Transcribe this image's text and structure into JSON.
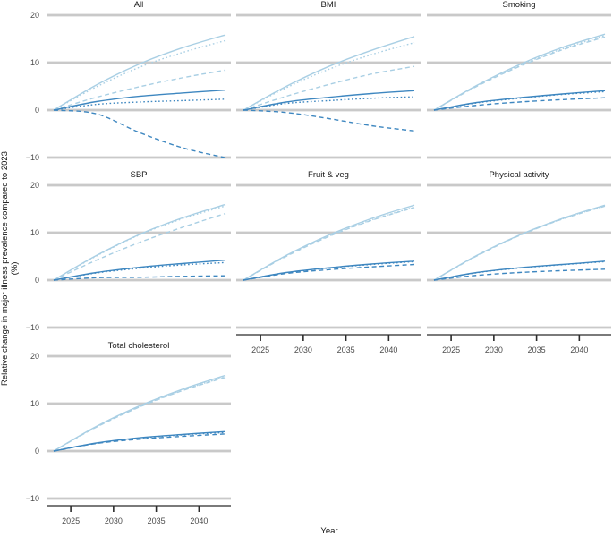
{
  "chart_data": {
    "type": "line",
    "title": "",
    "xlabel": "Year",
    "ylabel": "Relative change in major illness prevalence compared to 2023\n(%)",
    "x": [
      2023,
      2028,
      2033,
      2038,
      2043
    ],
    "x_range": [
      2023,
      2043
    ],
    "x_tick_values": [
      2025,
      2030,
      2035,
      2040
    ],
    "x_tick_labels": [
      "2025",
      "2030",
      "2035",
      "2040"
    ],
    "y_tick_values": [
      20,
      10,
      0,
      -10
    ],
    "y_tick_labels": [
      "20",
      "10",
      "0",
      "−10"
    ],
    "ylim": [
      -11,
      21
    ],
    "grid": "major-horizontal-only",
    "legend_position": "none",
    "colors": {
      "light_blue": "#a9cfe4",
      "dark_blue": "#3e87c0",
      "gridline": "#c9c9c9",
      "axis_line": "#2b2b2b",
      "tick_text": "#4d4d4d",
      "title_text": "#1a1a1a"
    },
    "panels": [
      {
        "title": "All",
        "series": [
          {
            "name": "light-solid",
            "tone": "light_blue",
            "dash": "solid",
            "values": [
              0,
              5.3,
              9.7,
              13.1,
              15.8
            ]
          },
          {
            "name": "light-dotted",
            "tone": "light_blue",
            "dash": "dotted",
            "values": [
              0,
              4.9,
              9.0,
              12.1,
              14.6
            ]
          },
          {
            "name": "light-dashed",
            "tone": "light_blue",
            "dash": "dashed",
            "values": [
              0,
              2.7,
              4.9,
              6.8,
              8.4
            ]
          },
          {
            "name": "dark-solid",
            "tone": "dark_blue",
            "dash": "solid",
            "values": [
              0,
              1.8,
              2.9,
              3.6,
              4.2
            ]
          },
          {
            "name": "dark-dotted",
            "tone": "dark_blue",
            "dash": "dotted",
            "values": [
              0,
              1.2,
              1.7,
              2.0,
              2.3
            ]
          },
          {
            "name": "dark-dashed",
            "tone": "dark_blue",
            "dash": "dashed",
            "values": [
              0,
              -0.8,
              -4.7,
              -7.9,
              -10.0
            ]
          }
        ]
      },
      {
        "title": "BMI",
        "series": [
          {
            "name": "light-solid",
            "tone": "light_blue",
            "dash": "solid",
            "values": [
              0,
              5.0,
              9.2,
              12.6,
              15.5
            ]
          },
          {
            "name": "light-dotted",
            "tone": "light_blue",
            "dash": "dotted",
            "values": [
              0,
              4.7,
              8.6,
              11.7,
              14.2
            ]
          },
          {
            "name": "light-dashed",
            "tone": "light_blue",
            "dash": "dashed",
            "values": [
              0,
              2.9,
              5.4,
              7.6,
              9.2
            ]
          },
          {
            "name": "dark-solid",
            "tone": "dark_blue",
            "dash": "solid",
            "values": [
              0,
              1.7,
              2.7,
              3.5,
              4.1
            ]
          },
          {
            "name": "dark-dotted",
            "tone": "dark_blue",
            "dash": "dotted",
            "values": [
              0,
              1.4,
              2.0,
              2.5,
              2.8
            ]
          },
          {
            "name": "dark-dashed",
            "tone": "dark_blue",
            "dash": "dashed",
            "values": [
              0,
              -0.5,
              -1.8,
              -3.3,
              -4.4
            ]
          }
        ]
      },
      {
        "title": "Smoking",
        "series": [
          {
            "name": "light-solid",
            "tone": "light_blue",
            "dash": "solid",
            "values": [
              0,
              5.2,
              9.6,
              13.2,
              16.0
            ]
          },
          {
            "name": "light-dotted",
            "tone": "light_blue",
            "dash": "dotted",
            "values": [
              0,
              5.1,
              9.4,
              12.9,
              15.7
            ]
          },
          {
            "name": "light-dashed",
            "tone": "light_blue",
            "dash": "dashed",
            "values": [
              0,
              5.0,
              9.2,
              12.7,
              15.4
            ]
          },
          {
            "name": "dark-solid",
            "tone": "dark_blue",
            "dash": "solid",
            "values": [
              0,
              1.6,
              2.6,
              3.4,
              4.1
            ]
          },
          {
            "name": "dark-dotted",
            "tone": "dark_blue",
            "dash": "dotted",
            "values": [
              0,
              1.5,
              2.5,
              3.3,
              3.9
            ]
          },
          {
            "name": "dark-dashed",
            "tone": "dark_blue",
            "dash": "dashed",
            "values": [
              0,
              1.0,
              1.7,
              2.2,
              2.6
            ]
          }
        ]
      },
      {
        "title": "SBP",
        "series": [
          {
            "name": "light-solid",
            "tone": "light_blue",
            "dash": "solid",
            "values": [
              0,
              5.2,
              9.6,
              13.1,
              15.9
            ]
          },
          {
            "name": "light-dotted",
            "tone": "light_blue",
            "dash": "dotted",
            "values": [
              0,
              5.1,
              9.5,
              12.9,
              15.6
            ]
          },
          {
            "name": "light-dashed",
            "tone": "light_blue",
            "dash": "dashed",
            "values": [
              0,
              4.2,
              7.9,
              11.1,
              14.0
            ]
          },
          {
            "name": "dark-solid",
            "tone": "dark_blue",
            "dash": "solid",
            "values": [
              0,
              1.6,
              2.7,
              3.5,
              4.2
            ]
          },
          {
            "name": "dark-dotted",
            "tone": "dark_blue",
            "dash": "dotted",
            "values": [
              0,
              1.5,
              2.5,
              3.2,
              3.7
            ]
          },
          {
            "name": "dark-dashed",
            "tone": "dark_blue",
            "dash": "dashed",
            "values": [
              0,
              0.5,
              0.6,
              0.8,
              0.9
            ]
          }
        ]
      },
      {
        "title": "Fruit & veg",
        "series": [
          {
            "name": "light-solid",
            "tone": "light_blue",
            "dash": "solid",
            "values": [
              0,
              5.2,
              9.5,
              13.0,
              15.8
            ]
          },
          {
            "name": "light-dotted",
            "tone": "light_blue",
            "dash": "dotted",
            "values": [
              0,
              5.1,
              9.3,
              12.7,
              15.4
            ]
          },
          {
            "name": "light-dashed",
            "tone": "light_blue",
            "dash": "dashed",
            "values": [
              0,
              5.0,
              9.2,
              12.6,
              15.3
            ]
          },
          {
            "name": "dark-solid",
            "tone": "dark_blue",
            "dash": "solid",
            "values": [
              0,
              1.6,
              2.6,
              3.4,
              4.0
            ]
          },
          {
            "name": "dark-dotted",
            "tone": "dark_blue",
            "dash": "dotted",
            "values": [
              0,
              1.55,
              2.55,
              3.3,
              3.9
            ]
          },
          {
            "name": "dark-dashed",
            "tone": "dark_blue",
            "dash": "dashed",
            "values": [
              0,
              1.4,
              2.2,
              2.8,
              3.3
            ]
          }
        ]
      },
      {
        "title": "Physical activity",
        "series": [
          {
            "name": "light-solid",
            "tone": "light_blue",
            "dash": "solid",
            "values": [
              0,
              5.2,
              9.5,
              13.0,
              15.8
            ]
          },
          {
            "name": "light-dotted",
            "tone": "light_blue",
            "dash": "dotted",
            "values": [
              0,
              5.15,
              9.45,
              12.9,
              15.7
            ]
          },
          {
            "name": "light-dashed",
            "tone": "light_blue",
            "dash": "dashed",
            "values": [
              0,
              5.1,
              9.4,
              12.85,
              15.6
            ]
          },
          {
            "name": "dark-solid",
            "tone": "dark_blue",
            "dash": "solid",
            "values": [
              0,
              1.6,
              2.6,
              3.3,
              4.0
            ]
          },
          {
            "name": "dark-dotted",
            "tone": "dark_blue",
            "dash": "dotted",
            "values": [
              0,
              1.55,
              2.55,
              3.25,
              3.9
            ]
          },
          {
            "name": "dark-dashed",
            "tone": "dark_blue",
            "dash": "dashed",
            "values": [
              0,
              1.0,
              1.6,
              2.0,
              2.3
            ]
          }
        ]
      },
      {
        "title": "Total cholesterol",
        "series": [
          {
            "name": "light-solid",
            "tone": "light_blue",
            "dash": "solid",
            "values": [
              0,
              5.2,
              9.5,
              13.0,
              15.9
            ]
          },
          {
            "name": "light-dotted",
            "tone": "light_blue",
            "dash": "dotted",
            "values": [
              0,
              5.1,
              9.3,
              12.8,
              15.6
            ]
          },
          {
            "name": "light-dashed",
            "tone": "light_blue",
            "dash": "dashed",
            "values": [
              0,
              5.05,
              9.25,
              12.7,
              15.5
            ]
          },
          {
            "name": "dark-solid",
            "tone": "dark_blue",
            "dash": "solid",
            "values": [
              0,
              1.7,
              2.8,
              3.5,
              4.1
            ]
          },
          {
            "name": "dark-dotted",
            "tone": "dark_blue",
            "dash": "dotted",
            "values": [
              0,
              1.65,
              2.7,
              3.4,
              3.9
            ]
          },
          {
            "name": "dark-dashed",
            "tone": "dark_blue",
            "dash": "dashed",
            "values": [
              0,
              1.6,
              2.5,
              3.1,
              3.6
            ]
          }
        ]
      }
    ]
  }
}
